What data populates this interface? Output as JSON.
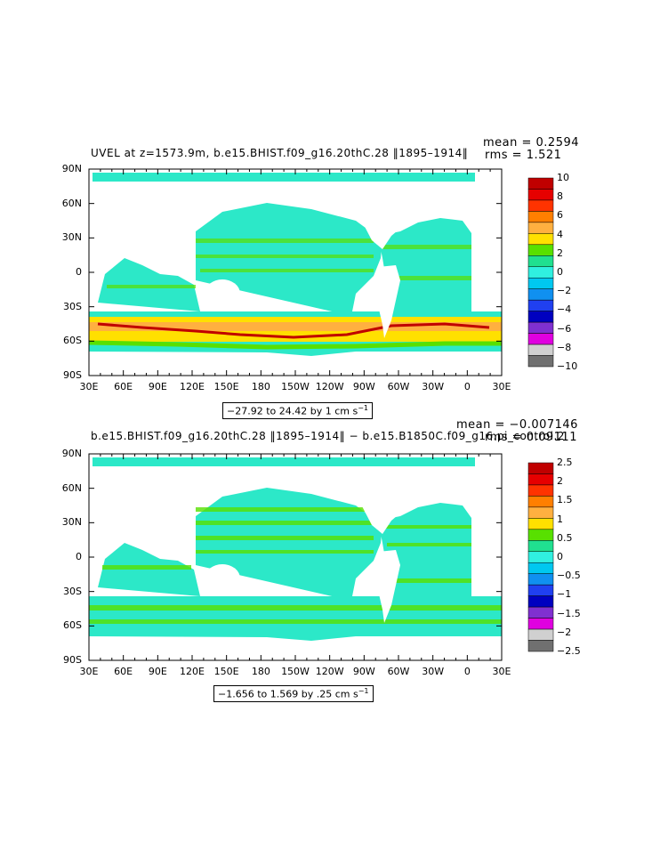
{
  "panels": [
    {
      "title": "UVEL at z=1573.9m, b.e15.BHIST.f09_g16.20thC.28 ‖1895–1914‖",
      "mean_label": "mean = 0.2594",
      "rms_label": "rms = 1.521",
      "range_label": "−27.92 to 24.42 by 1 cm s",
      "range_sup": "−1",
      "colorbar_labels": [
        "10",
        "8",
        "6",
        "4",
        "2",
        "0",
        "−2",
        "−4",
        "−6",
        "−8",
        "−10"
      ]
    },
    {
      "title": "b.e15.BHIST.f09_g16.20thC.28 ‖1895–1914‖ − b.e15.B1850C.f09_g16.pi_control.2",
      "mean_label": "mean = −0.007146",
      "rms_label": "rms = 0.09111",
      "range_label": "−1.656 to 1.569 by .25 cm s",
      "range_sup": "−1",
      "colorbar_labels": [
        "2.5",
        "2",
        "1.5",
        "1",
        "0.5",
        "0",
        "−0.5",
        "−1",
        "−1.5",
        "−2",
        "−2.5"
      ]
    }
  ],
  "lat_labels": [
    "90N",
    "60N",
    "30N",
    "0",
    "30S",
    "60S",
    "90S"
  ],
  "lon_labels": [
    "30E",
    "60E",
    "90E",
    "120E",
    "150E",
    "180",
    "150W",
    "120W",
    "90W",
    "60W",
    "30W",
    "0",
    "30E"
  ],
  "colors": {
    "colorbar": [
      "#c00000",
      "#e60000",
      "#ff3300",
      "#ff7f00",
      "#ffb040",
      "#ffe000",
      "#58e000",
      "#20e090",
      "#30f0e0",
      "#00c8f0",
      "#1090f0",
      "#2040f0",
      "#0000c0",
      "#8030d0",
      "#e000e0",
      "#d0d0d0",
      "#707070"
    ],
    "ocean_base": "#2ce8c8",
    "land": "#ffffff"
  }
}
